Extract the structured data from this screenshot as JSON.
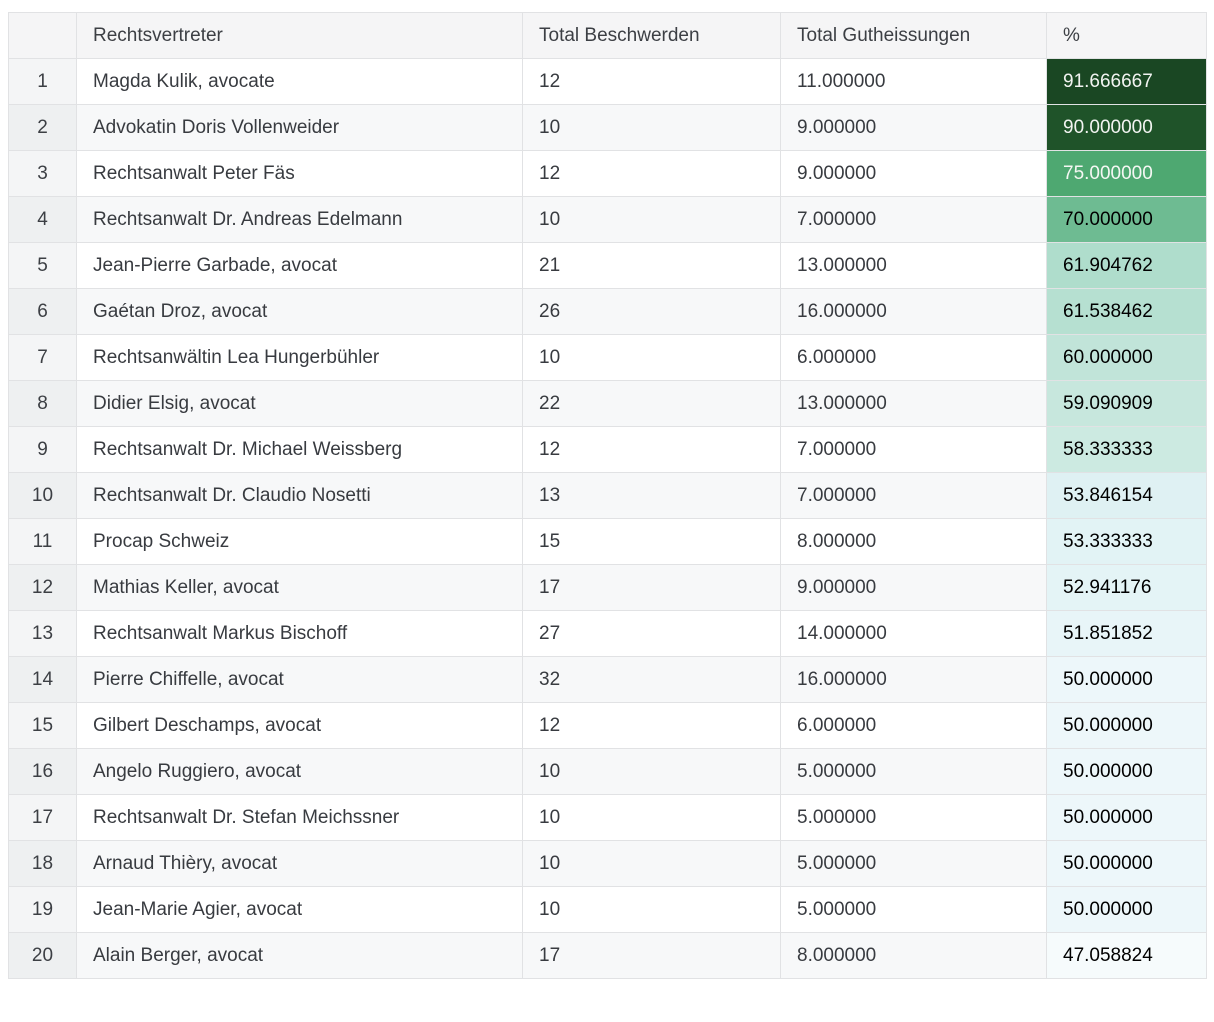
{
  "table": {
    "columns": [
      "",
      "Rechtsvertreter",
      "Total Beschwerden",
      "Total Gutheissungen",
      "%"
    ],
    "rows": [
      {
        "idx": "1",
        "rechtsvertreter": "Magda Kulik, avocate",
        "total_beschwerden": "12",
        "total_gutheissungen": "11.000000",
        "pct": "91.666667",
        "pct_bg": "#1a4723",
        "pct_fg": "#f2f4f1"
      },
      {
        "idx": "2",
        "rechtsvertreter": "Advokatin Doris Vollenweider",
        "total_beschwerden": "10",
        "total_gutheissungen": "9.000000",
        "pct": "90.000000",
        "pct_bg": "#1f5329",
        "pct_fg": "#f2f4f1"
      },
      {
        "idx": "3",
        "rechtsvertreter": "Rechtsanwalt Peter Fäs",
        "total_beschwerden": "12",
        "total_gutheissungen": "9.000000",
        "pct": "75.000000",
        "pct_bg": "#4ea871",
        "pct_fg": "#f4f7f3"
      },
      {
        "idx": "4",
        "rechtsvertreter": "Rechtsanwalt Dr. Andreas Edelmann",
        "total_beschwerden": "10",
        "total_gutheissungen": "7.000000",
        "pct": "70.000000",
        "pct_bg": "#6ebb92",
        "pct_fg": "#000000"
      },
      {
        "idx": "5",
        "rechtsvertreter": "Jean-Pierre Garbade, avocat",
        "total_beschwerden": "21",
        "total_gutheissungen": "13.000000",
        "pct": "61.904762",
        "pct_bg": "#afddcc",
        "pct_fg": "#000000"
      },
      {
        "idx": "6",
        "rechtsvertreter": "Gaétan Droz, avocat",
        "total_beschwerden": "26",
        "total_gutheissungen": "16.000000",
        "pct": "61.538462",
        "pct_bg": "#b6e0d1",
        "pct_fg": "#000000"
      },
      {
        "idx": "7",
        "rechtsvertreter": "Rechtsanwältin Lea Hungerbühler",
        "total_beschwerden": "10",
        "total_gutheissungen": "6.000000",
        "pct": "60.000000",
        "pct_bg": "#c1e4d9",
        "pct_fg": "#000000"
      },
      {
        "idx": "8",
        "rechtsvertreter": "Didier Elsig, avocat",
        "total_beschwerden": "22",
        "total_gutheissungen": "13.000000",
        "pct": "59.090909",
        "pct_bg": "#c7e7dd",
        "pct_fg": "#000000"
      },
      {
        "idx": "9",
        "rechtsvertreter": "Rechtsanwalt Dr. Michael Weissberg",
        "total_beschwerden": "12",
        "total_gutheissungen": "7.000000",
        "pct": "58.333333",
        "pct_bg": "#cceae1",
        "pct_fg": "#000000"
      },
      {
        "idx": "10",
        "rechtsvertreter": "Rechtsanwalt Dr. Claudio Nosetti",
        "total_beschwerden": "13",
        "total_gutheissungen": "7.000000",
        "pct": "53.846154",
        "pct_bg": "#dff1f3",
        "pct_fg": "#000000"
      },
      {
        "idx": "11",
        "rechtsvertreter": "Procap Schweiz",
        "total_beschwerden": "15",
        "total_gutheissungen": "8.000000",
        "pct": "53.333333",
        "pct_bg": "#e2f3f5",
        "pct_fg": "#000000"
      },
      {
        "idx": "12",
        "rechtsvertreter": "Mathias Keller, avocat",
        "total_beschwerden": "17",
        "total_gutheissungen": "9.000000",
        "pct": "52.941176",
        "pct_bg": "#e4f4f6",
        "pct_fg": "#000000"
      },
      {
        "idx": "13",
        "rechtsvertreter": "Rechtsanwalt Markus Bischoff",
        "total_beschwerden": "27",
        "total_gutheissungen": "14.000000",
        "pct": "51.851852",
        "pct_bg": "#e8f5f8",
        "pct_fg": "#000000"
      },
      {
        "idx": "14",
        "rechtsvertreter": "Pierre Chiffelle, avocat",
        "total_beschwerden": "32",
        "total_gutheissungen": "16.000000",
        "pct": "50.000000",
        "pct_bg": "#edf7fa",
        "pct_fg": "#000000"
      },
      {
        "idx": "15",
        "rechtsvertreter": "Gilbert Deschamps, avocat",
        "total_beschwerden": "12",
        "total_gutheissungen": "6.000000",
        "pct": "50.000000",
        "pct_bg": "#edf7fa",
        "pct_fg": "#000000"
      },
      {
        "idx": "16",
        "rechtsvertreter": "Angelo Ruggiero, avocat",
        "total_beschwerden": "10",
        "total_gutheissungen": "5.000000",
        "pct": "50.000000",
        "pct_bg": "#edf7fa",
        "pct_fg": "#000000"
      },
      {
        "idx": "17",
        "rechtsvertreter": "Rechtsanwalt Dr. Stefan Meichssner",
        "total_beschwerden": "10",
        "total_gutheissungen": "5.000000",
        "pct": "50.000000",
        "pct_bg": "#edf7fa",
        "pct_fg": "#000000"
      },
      {
        "idx": "18",
        "rechtsvertreter": "Arnaud Thièry, avocat",
        "total_beschwerden": "10",
        "total_gutheissungen": "5.000000",
        "pct": "50.000000",
        "pct_bg": "#edf7fa",
        "pct_fg": "#000000"
      },
      {
        "idx": "19",
        "rechtsvertreter": "Jean-Marie Agier, avocat",
        "total_beschwerden": "10",
        "total_gutheissungen": "5.000000",
        "pct": "50.000000",
        "pct_bg": "#edf7fa",
        "pct_fg": "#000000"
      },
      {
        "idx": "20",
        "rechtsvertreter": "Alain Berger, avocat",
        "total_beschwerden": "17",
        "total_gutheissungen": "8.000000",
        "pct": "47.058824",
        "pct_bg": "#f6fbfc",
        "pct_fg": "#000000"
      }
    ]
  },
  "colors": {
    "header_bg": "#f5f5f6",
    "row_odd_bg": "#ffffff",
    "row_even_bg": "#f7f8f9",
    "index_odd_bg": "#f4f5f6",
    "index_even_bg": "#eef0f1",
    "border": "#e1e2e4",
    "text": "#383b40",
    "gradient_max": "#1a4723",
    "gradient_min": "#f6fbfc"
  },
  "chart_data": {
    "type": "table",
    "title": "",
    "columns": [
      "",
      "Rechtsvertreter",
      "Total Beschwerden",
      "Total Gutheissungen",
      "%"
    ],
    "rows": [
      [
        1,
        "Magda Kulik, avocate",
        12,
        11.0,
        91.666667
      ],
      [
        2,
        "Advokatin Doris Vollenweider",
        10,
        9.0,
        90.0
      ],
      [
        3,
        "Rechtsanwalt Peter Fäs",
        12,
        9.0,
        75.0
      ],
      [
        4,
        "Rechtsanwalt Dr. Andreas Edelmann",
        10,
        7.0,
        70.0
      ],
      [
        5,
        "Jean-Pierre Garbade, avocat",
        21,
        13.0,
        61.904762
      ],
      [
        6,
        "Gaétan Droz, avocat",
        26,
        16.0,
        61.538462
      ],
      [
        7,
        "Rechtsanwältin Lea Hungerbühler",
        10,
        6.0,
        60.0
      ],
      [
        8,
        "Didier Elsig, avocat",
        22,
        13.0,
        59.090909
      ],
      [
        9,
        "Rechtsanwalt Dr. Michael Weissberg",
        12,
        7.0,
        58.333333
      ],
      [
        10,
        "Rechtsanwalt Dr. Claudio Nosetti",
        13,
        7.0,
        53.846154
      ],
      [
        11,
        "Procap Schweiz",
        15,
        8.0,
        53.333333
      ],
      [
        12,
        "Mathias Keller, avocat",
        17,
        9.0,
        52.941176
      ],
      [
        13,
        "Rechtsanwalt Markus Bischoff",
        27,
        14.0,
        51.851852
      ],
      [
        14,
        "Pierre Chiffelle, avocat",
        32,
        16.0,
        50.0
      ],
      [
        15,
        "Gilbert Deschamps, avocat",
        12,
        6.0,
        50.0
      ],
      [
        16,
        "Angelo Ruggiero, avocat",
        10,
        5.0,
        50.0
      ],
      [
        17,
        "Rechtsanwalt Dr. Stefan Meichssner",
        10,
        5.0,
        50.0
      ],
      [
        18,
        "Arnaud Thièry, avocat",
        10,
        5.0,
        50.0
      ],
      [
        19,
        "Jean-Marie Agier, avocat",
        10,
        5.0,
        50.0
      ],
      [
        20,
        "Alain Berger, avocat",
        17,
        8.0,
        47.058824
      ]
    ],
    "notes": "Percent column styled with sequential green (BuGn-like) background gradient, dark = high"
  }
}
